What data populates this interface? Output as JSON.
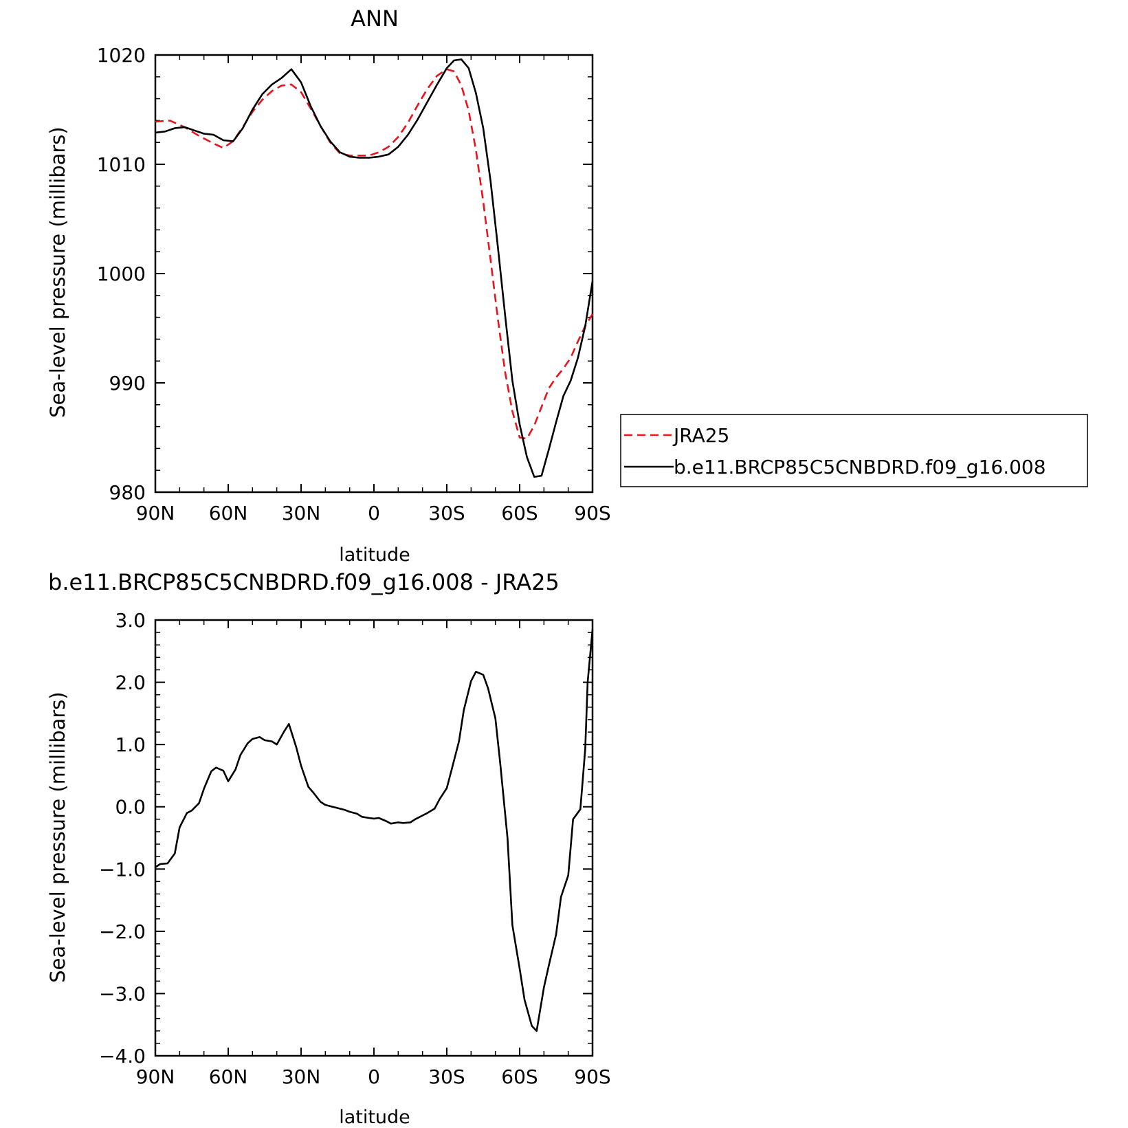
{
  "chart_data": [
    {
      "type": "line",
      "title": "ANN",
      "xlabel": "latitude",
      "ylabel": "Sea-level pressure (millibars)",
      "xlim": [
        90,
        -90
      ],
      "ylim": [
        980,
        1020
      ],
      "x_ticks": [
        {
          "value": 90,
          "label": "90N"
        },
        {
          "value": 60,
          "label": "60N"
        },
        {
          "value": 30,
          "label": "30N"
        },
        {
          "value": 0,
          "label": "0"
        },
        {
          "value": -30,
          "label": "30S"
        },
        {
          "value": -60,
          "label": "60S"
        },
        {
          "value": -90,
          "label": "90S"
        }
      ],
      "y_ticks": [
        {
          "value": 1020,
          "label": "1020"
        },
        {
          "value": 1010,
          "label": "1010"
        },
        {
          "value": 1000,
          "label": "1000"
        },
        {
          "value": 990,
          "label": "990"
        },
        {
          "value": 980,
          "label": "980"
        }
      ],
      "legend_position": "right",
      "series": [
        {
          "name": "JRA25",
          "color": "#e8141c",
          "dash": "dashed",
          "x": [
            90,
            84,
            78,
            72,
            66,
            62,
            58,
            54,
            50,
            46,
            42,
            38,
            34,
            30,
            26,
            22,
            18,
            14,
            10,
            6,
            2,
            -2,
            -6,
            -10,
            -14,
            -18,
            -22,
            -26,
            -30,
            -33,
            -36,
            -39,
            -42,
            -45,
            -48,
            -51,
            -54,
            -57,
            -60,
            -63,
            -66,
            -69,
            -72,
            -75,
            -78,
            -81,
            -84,
            -87,
            -90
          ],
          "values": [
            1013.9,
            1014.0,
            1013.4,
            1012.6,
            1011.9,
            1011.5,
            1012.1,
            1013.4,
            1014.8,
            1015.9,
            1016.7,
            1017.2,
            1017.3,
            1016.6,
            1015.1,
            1013.5,
            1012.0,
            1011.0,
            1010.8,
            1010.8,
            1010.8,
            1011.1,
            1011.6,
            1012.5,
            1013.8,
            1015.4,
            1016.9,
            1018.1,
            1018.7,
            1018.5,
            1017.2,
            1014.9,
            1011.3,
            1006.6,
            1001.3,
            995.9,
            991.0,
            987.4,
            985.0,
            984.9,
            986.1,
            987.8,
            989.5,
            990.5,
            991.3,
            992.3,
            993.8,
            995.2,
            996.3
          ]
        },
        {
          "name": "b.e11.BRCP85C5CNBDRD.f09_g16.008",
          "color": "#000000",
          "dash": "solid",
          "x": [
            90,
            86,
            82,
            78,
            74,
            70,
            66,
            62,
            58,
            54,
            50,
            46,
            42,
            40,
            38,
            34,
            30,
            26,
            22,
            18,
            14,
            10,
            6,
            2,
            -2,
            -6,
            -10,
            -14,
            -18,
            -22,
            -26,
            -30,
            -33,
            -36,
            -39,
            -42,
            -45,
            -48,
            -51,
            -54,
            -57,
            -60,
            -63,
            -66,
            -69,
            -72,
            -75,
            -78,
            -81,
            -84,
            -87,
            -90
          ],
          "values": [
            1012.9,
            1013.0,
            1013.3,
            1013.4,
            1013.1,
            1012.8,
            1012.7,
            1012.2,
            1012.1,
            1013.3,
            1015.0,
            1016.4,
            1017.3,
            1017.6,
            1017.9,
            1018.7,
            1017.5,
            1015.3,
            1013.5,
            1012.1,
            1011.1,
            1010.7,
            1010.6,
            1010.6,
            1010.7,
            1010.9,
            1011.6,
            1012.7,
            1014.1,
            1015.7,
            1017.3,
            1018.8,
            1019.5,
            1019.6,
            1018.8,
            1016.5,
            1013.3,
            1008.5,
            1002.5,
            996.2,
            990.2,
            986.2,
            983.2,
            981.4,
            981.5,
            983.9,
            986.4,
            988.8,
            990.2,
            992.3,
            995.2,
            999.3
          ]
        }
      ]
    },
    {
      "type": "line",
      "title": "b.e11.BRCP85C5CNBDRD.f09_g16.008 - JRA25",
      "xlabel": "latitude",
      "ylabel": "Sea-level pressure (millibars)",
      "xlim": [
        90,
        -90
      ],
      "ylim": [
        -4.0,
        3.0
      ],
      "x_ticks": [
        {
          "value": 90,
          "label": "90N"
        },
        {
          "value": 60,
          "label": "60N"
        },
        {
          "value": 30,
          "label": "30N"
        },
        {
          "value": 0,
          "label": "0"
        },
        {
          "value": -30,
          "label": "30S"
        },
        {
          "value": -60,
          "label": "60S"
        },
        {
          "value": -90,
          "label": "90S"
        }
      ],
      "y_ticks": [
        {
          "value": 3.0,
          "label": "3.0"
        },
        {
          "value": 2.0,
          "label": "2.0"
        },
        {
          "value": 1.0,
          "label": "1.0"
        },
        {
          "value": 0.0,
          "label": "0.0"
        },
        {
          "value": -1.0,
          "label": "−1.0"
        },
        {
          "value": -2.0,
          "label": "−2.0"
        },
        {
          "value": -3.0,
          "label": "−3.0"
        },
        {
          "value": -4.0,
          "label": "−4.0"
        }
      ],
      "series": [
        {
          "color": "#000000",
          "dash": "solid",
          "x": [
            90,
            88,
            85,
            82,
            80,
            77,
            75,
            72,
            70,
            67,
            65,
            62,
            60,
            57,
            55,
            52,
            50,
            47,
            45,
            42,
            40,
            37,
            35,
            32,
            30,
            27,
            25,
            22,
            20,
            17,
            15,
            12,
            10,
            7,
            5,
            2,
            0,
            -2,
            -5,
            -7,
            -10,
            -12,
            -15,
            -17,
            -20,
            -22,
            -25,
            -27,
            -30,
            -32,
            -35,
            -37,
            -40,
            -42,
            -45,
            -47,
            -50,
            -52,
            -55,
            -57,
            -60,
            -62,
            -65,
            -67,
            -70,
            -72,
            -75,
            -77,
            -80,
            -82,
            -85,
            -87,
            -88,
            -90
          ],
          "values": [
            -0.97,
            -0.92,
            -0.91,
            -0.75,
            -0.33,
            -0.1,
            -0.06,
            0.06,
            0.29,
            0.57,
            0.63,
            0.58,
            0.41,
            0.6,
            0.83,
            1.02,
            1.09,
            1.12,
            1.07,
            1.05,
            1.0,
            1.21,
            1.33,
            0.96,
            0.66,
            0.32,
            0.23,
            0.08,
            0.03,
            0.0,
            -0.02,
            -0.05,
            -0.08,
            -0.11,
            -0.16,
            -0.18,
            -0.19,
            -0.18,
            -0.23,
            -0.27,
            -0.25,
            -0.26,
            -0.25,
            -0.2,
            -0.14,
            -0.1,
            -0.03,
            0.12,
            0.3,
            0.6,
            1.05,
            1.55,
            2.02,
            2.17,
            2.12,
            1.9,
            1.42,
            0.7,
            -0.5,
            -1.9,
            -2.6,
            -3.1,
            -3.52,
            -3.6,
            -2.9,
            -2.55,
            -2.05,
            -1.45,
            -1.1,
            -0.2,
            -0.04,
            0.93,
            2.0,
            2.85
          ]
        }
      ]
    }
  ]
}
